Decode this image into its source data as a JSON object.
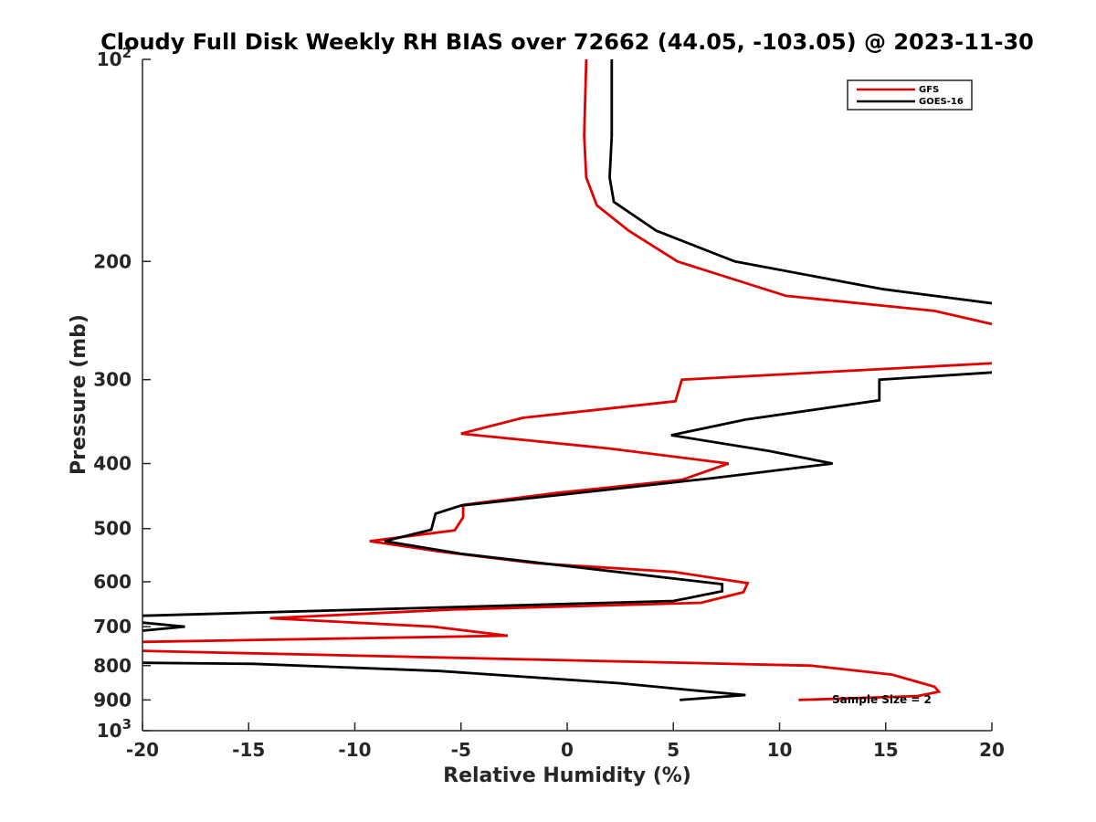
{
  "chart_data": {
    "type": "line",
    "title": "Cloudy Full Disk Weekly RH BIAS over 72662 (44.05, -103.05) @ 2023-11-30",
    "xlabel": "Relative Humidity (%)",
    "ylabel": "Pressure (mb)",
    "xlim": [
      -20,
      20
    ],
    "ylim": [
      100,
      1000
    ],
    "y_scale": "log",
    "y_reversed": true,
    "grid": false,
    "legend_position": "top-right",
    "x_ticks": [
      {
        "value": -20,
        "label": "-20"
      },
      {
        "value": -15,
        "label": "-15"
      },
      {
        "value": -10,
        "label": "-10"
      },
      {
        "value": -5,
        "label": "-5"
      },
      {
        "value": 0,
        "label": "0"
      },
      {
        "value": 5,
        "label": "5"
      },
      {
        "value": 10,
        "label": "10"
      },
      {
        "value": 15,
        "label": "15"
      },
      {
        "value": 20,
        "label": "20"
      }
    ],
    "y_ticks": [
      {
        "value": 100,
        "base": "10",
        "exp": "2"
      },
      {
        "value": 200,
        "base": "200",
        "exp": ""
      },
      {
        "value": 300,
        "base": "300",
        "exp": ""
      },
      {
        "value": 400,
        "base": "400",
        "exp": ""
      },
      {
        "value": 500,
        "base": "500",
        "exp": ""
      },
      {
        "value": 600,
        "base": "600",
        "exp": ""
      },
      {
        "value": 700,
        "base": "700",
        "exp": ""
      },
      {
        "value": 800,
        "base": "800",
        "exp": ""
      },
      {
        "value": 900,
        "base": "900",
        "exp": ""
      },
      {
        "value": 1000,
        "base": "10",
        "exp": "3"
      }
    ],
    "series": [
      {
        "name": "GFS",
        "color": "#e00000",
        "points": [
          {
            "x": 0.9,
            "y": 100
          },
          {
            "x": 0.8,
            "y": 130
          },
          {
            "x": 0.9,
            "y": 150
          },
          {
            "x": 1.4,
            "y": 165
          },
          {
            "x": 2.9,
            "y": 180
          },
          {
            "x": 5.2,
            "y": 200
          },
          {
            "x": 10.3,
            "y": 225
          },
          {
            "x": 17.3,
            "y": 237
          },
          {
            "x": 20.5,
            "y": 250
          },
          {
            "x": 20.5,
            "y": 283
          },
          {
            "x": 5.4,
            "y": 300
          },
          {
            "x": 5.1,
            "y": 323
          },
          {
            "x": -2.1,
            "y": 342
          },
          {
            "x": -5.0,
            "y": 361
          },
          {
            "x": 2.0,
            "y": 380
          },
          {
            "x": 7.6,
            "y": 400
          },
          {
            "x": 5.4,
            "y": 423
          },
          {
            "x": -0.4,
            "y": 442
          },
          {
            "x": -4.9,
            "y": 461
          },
          {
            "x": -4.9,
            "y": 481
          },
          {
            "x": -5.3,
            "y": 503
          },
          {
            "x": -9.3,
            "y": 522
          },
          {
            "x": -6.0,
            "y": 541
          },
          {
            "x": -1.5,
            "y": 563
          },
          {
            "x": 5.0,
            "y": 580
          },
          {
            "x": 8.5,
            "y": 603
          },
          {
            "x": 8.3,
            "y": 622
          },
          {
            "x": 6.3,
            "y": 645
          },
          {
            "x": -5.4,
            "y": 660
          },
          {
            "x": -14.0,
            "y": 680
          },
          {
            "x": -6.3,
            "y": 700
          },
          {
            "x": -2.8,
            "y": 722
          },
          {
            "x": -20.5,
            "y": 738
          },
          {
            "x": -20.5,
            "y": 760
          },
          {
            "x": 11.5,
            "y": 800
          },
          {
            "x": 15.3,
            "y": 825
          },
          {
            "x": 17.3,
            "y": 860
          },
          {
            "x": 17.5,
            "y": 875
          },
          {
            "x": 16.5,
            "y": 888
          },
          {
            "x": 10.9,
            "y": 900
          }
        ]
      },
      {
        "name": "GOES-16",
        "color": "#000000",
        "points": [
          {
            "x": 2.1,
            "y": 100
          },
          {
            "x": 2.1,
            "y": 130
          },
          {
            "x": 2.0,
            "y": 150
          },
          {
            "x": 2.2,
            "y": 163
          },
          {
            "x": 4.2,
            "y": 180
          },
          {
            "x": 7.9,
            "y": 200
          },
          {
            "x": 14.9,
            "y": 220
          },
          {
            "x": 20.5,
            "y": 232
          },
          {
            "x": 20.5,
            "y": 292
          },
          {
            "x": 14.7,
            "y": 300
          },
          {
            "x": 14.7,
            "y": 322
          },
          {
            "x": 8.4,
            "y": 344
          },
          {
            "x": 4.9,
            "y": 363
          },
          {
            "x": 9.5,
            "y": 383
          },
          {
            "x": 12.5,
            "y": 400
          },
          {
            "x": 7.0,
            "y": 420
          },
          {
            "x": -0.2,
            "y": 445
          },
          {
            "x": -5.0,
            "y": 462
          },
          {
            "x": -6.2,
            "y": 475
          },
          {
            "x": -6.4,
            "y": 502
          },
          {
            "x": -8.6,
            "y": 522
          },
          {
            "x": -5.0,
            "y": 545
          },
          {
            "x": 7.3,
            "y": 605
          },
          {
            "x": 7.3,
            "y": 620
          },
          {
            "x": 5.0,
            "y": 641
          },
          {
            "x": -20.5,
            "y": 675
          },
          {
            "x": -20.5,
            "y": 688
          },
          {
            "x": -18.0,
            "y": 700
          },
          {
            "x": -20.5,
            "y": 712
          },
          {
            "x": -20.5,
            "y": 792
          },
          {
            "x": -14.8,
            "y": 795
          },
          {
            "x": -6.0,
            "y": 815
          },
          {
            "x": 2.5,
            "y": 850
          },
          {
            "x": 5.8,
            "y": 870
          },
          {
            "x": 8.4,
            "y": 885
          },
          {
            "x": 5.3,
            "y": 900
          }
        ]
      }
    ],
    "annotations": [
      {
        "text": "Sample Size = 2",
        "x": 12.5,
        "y": 900
      }
    ]
  }
}
